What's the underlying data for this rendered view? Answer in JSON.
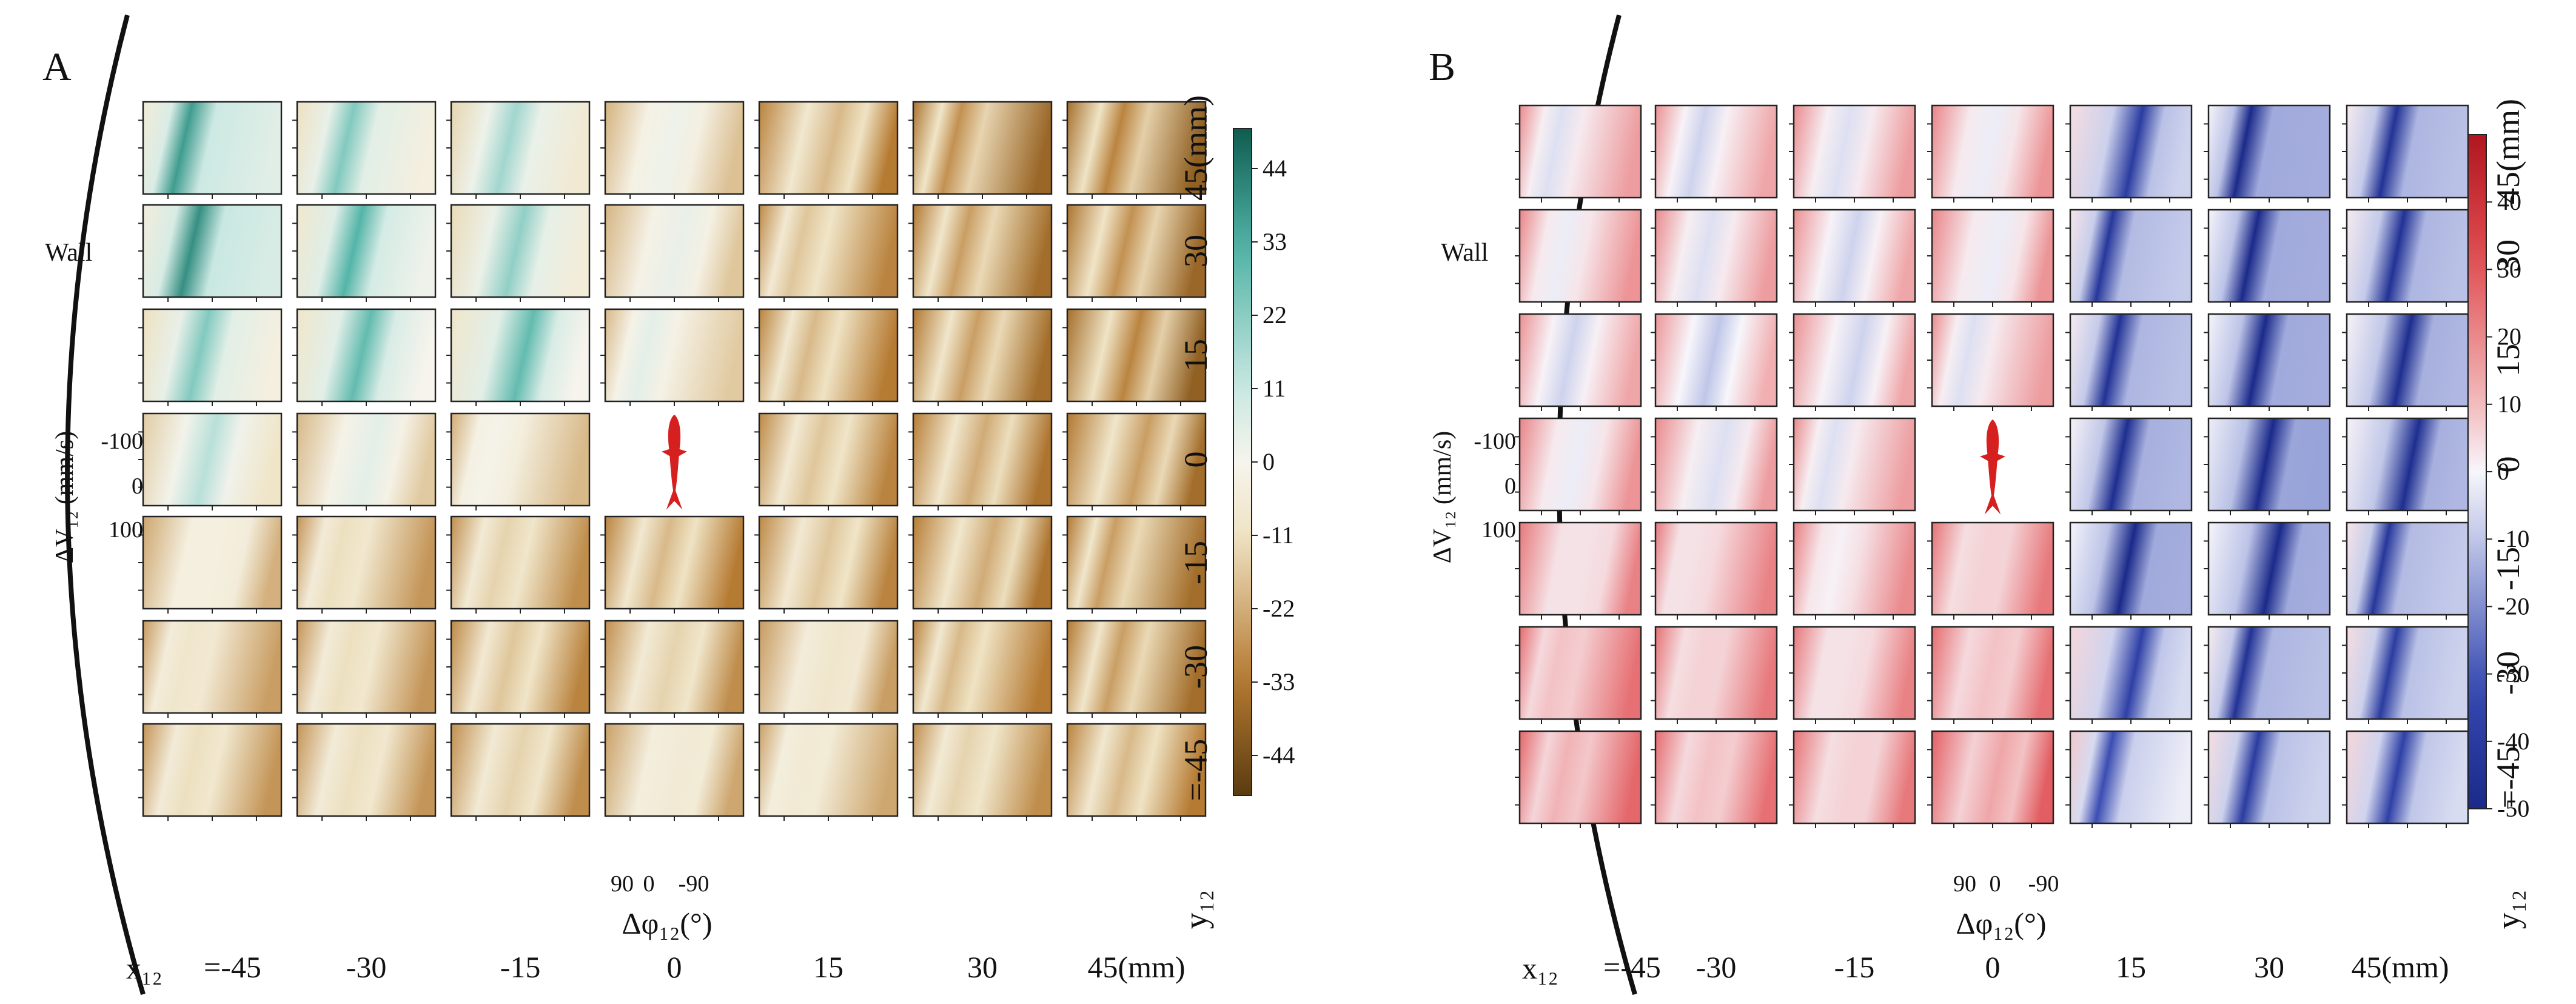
{
  "chart_data": [
    {
      "type": "heatmap",
      "panel_label": "A",
      "wall_label": "Wall",
      "colormap": "teal-brown (BrBG)",
      "cmap_colors": {
        "neg_end": "#5a3b10",
        "neg_mid": "#b57a32",
        "neg_light": "#efe3c4",
        "zero": "#f6f4ec",
        "pos_light": "#c9e8e2",
        "pos_mid": "#4fb2a5",
        "pos_end": "#0f5c50"
      },
      "x_axis_label": "x₁₂",
      "x_tick_labels": [
        "=-45",
        "-30",
        "-15",
        "0",
        "15",
        "30",
        "45(mm)"
      ],
      "x12_values": [
        -45,
        -30,
        -15,
        0,
        15,
        30,
        45
      ],
      "y_axis_label": "y₁₂",
      "y_tick_labels": [
        "45(mm)",
        "30",
        "15",
        "0",
        "-15",
        "-30",
        "=-45"
      ],
      "y12_values": [
        45,
        30,
        15,
        0,
        -15,
        -30,
        -45
      ],
      "inset_x_label": "Δφ₁₂(°)",
      "inset_x_ticks": [
        "90",
        "0",
        "-90"
      ],
      "inset_y_label": "ΔV₁₂ (mm/s)",
      "inset_y_ticks": [
        "100",
        "0",
        "-100"
      ],
      "colorbar_ticks": [
        44,
        33,
        22,
        11,
        0,
        -11,
        -22,
        -33,
        -44
      ],
      "colorbar_range": [
        -50,
        50
      ],
      "empty_cell": {
        "row": 3,
        "col": 3
      },
      "cell_bias": [
        [
          20,
          10,
          6,
          -6,
          -22,
          -28,
          -30
        ],
        [
          22,
          16,
          8,
          -5,
          -20,
          -26,
          -28
        ],
        [
          10,
          14,
          14,
          -4,
          -22,
          -26,
          -30
        ],
        [
          3,
          -4,
          -8,
          null,
          -20,
          -24,
          -26
        ],
        [
          -10,
          -16,
          -18,
          -22,
          -20,
          -24,
          -26
        ],
        [
          -14,
          -16,
          -20,
          -18,
          -14,
          -22,
          -26
        ],
        [
          -16,
          -16,
          -18,
          -12,
          -12,
          -18,
          -22
        ]
      ]
    },
    {
      "type": "heatmap",
      "panel_label": "B",
      "wall_label": "Wall",
      "colormap": "blue-white-red (RdBu)",
      "cmap_colors": {
        "neg_end": "#1b2a8a",
        "neg_mid": "#3548b0",
        "neg_light": "#b9c1e6",
        "zero": "#f7f6fb",
        "pos_light": "#f2b6b8",
        "pos_mid": "#df4b4f",
        "pos_end": "#b01620"
      },
      "x_axis_label": "x₁₂",
      "x_tick_labels": [
        "=-45",
        "-30",
        "-15",
        "0",
        "15",
        "30",
        "45(mm)"
      ],
      "x12_values": [
        -45,
        -30,
        -15,
        0,
        15,
        30,
        45
      ],
      "y_axis_label": "y₁₂",
      "y_tick_labels": [
        "45(mm)",
        "30",
        "15",
        "0",
        "-15",
        "-30",
        "=-45"
      ],
      "y12_values": [
        45,
        30,
        15,
        0,
        -15,
        -30,
        -45
      ],
      "inset_x_label": "Δφ₁₂(°)",
      "inset_x_ticks": [
        "90",
        "0",
        "-90"
      ],
      "inset_y_label": "ΔV₁₂ (mm/s)",
      "inset_y_ticks": [
        "100",
        "0",
        "-100"
      ],
      "colorbar_ticks": [
        40,
        30,
        20,
        10,
        0,
        -10,
        -20,
        -30,
        -40,
        -50
      ],
      "colorbar_range": [
        -50,
        50
      ],
      "empty_cell": {
        "row": 3,
        "col": 3
      },
      "cell_bias": [
        [
          4,
          2,
          4,
          6,
          -22,
          -30,
          -26
        ],
        [
          6,
          4,
          2,
          6,
          -24,
          -30,
          -26
        ],
        [
          2,
          0,
          2,
          4,
          -26,
          -30,
          -28
        ],
        [
          6,
          4,
          4,
          null,
          -28,
          -32,
          -28
        ],
        [
          10,
          10,
          8,
          12,
          -30,
          -30,
          -24
        ],
        [
          14,
          12,
          10,
          14,
          -20,
          -26,
          -22
        ],
        [
          16,
          14,
          12,
          18,
          -16,
          -22,
          -20
        ]
      ]
    }
  ]
}
